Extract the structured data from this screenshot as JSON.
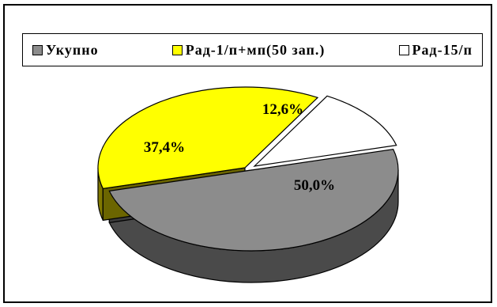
{
  "chart_data": {
    "type": "pie",
    "categories": [
      "Укупно",
      "Рад-1/п+мп(50 зап.)",
      "Рад-15/п"
    ],
    "values": [
      50.0,
      37.4,
      12.6
    ],
    "labels": [
      "50,0%",
      "37,4%",
      "12,6%"
    ],
    "colors": [
      "#8c8c8c",
      "#ffff00",
      "#ffffff"
    ],
    "legend_position": "top",
    "style": "3d-exploded"
  },
  "legend": {
    "items": [
      {
        "label": "Укупно",
        "color": "#8c8c8c"
      },
      {
        "label": "Рад-1/п+мп(50 зап.)",
        "color": "#ffff00"
      },
      {
        "label": "Рад-15/п",
        "color": "#ffffff"
      }
    ]
  }
}
